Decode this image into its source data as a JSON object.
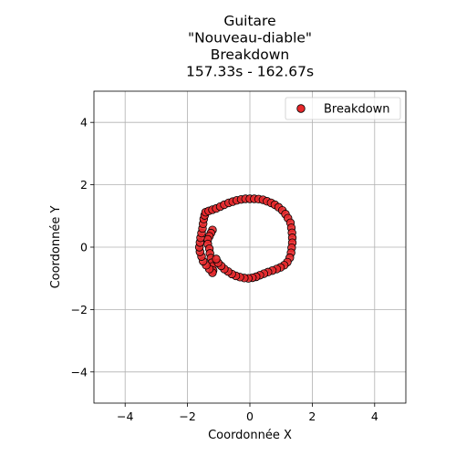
{
  "chart_data": {
    "type": "scatter",
    "title_lines": [
      "Guitare",
      "\"Nouveau-diable\"",
      "Breakdown",
      "157.33s - 162.67s"
    ],
    "xlabel": "Coordonnée X",
    "ylabel": "Coordonnée Y",
    "xlim": [
      -5,
      5
    ],
    "ylim": [
      -5,
      5
    ],
    "xticks": [
      -4,
      -2,
      0,
      2,
      4
    ],
    "yticks": [
      -4,
      -2,
      0,
      2,
      4
    ],
    "xtick_labels": [
      "−4",
      "−2",
      "0",
      "2",
      "4"
    ],
    "ytick_labels": [
      "−4",
      "−2",
      "0",
      "2",
      "4"
    ],
    "grid": true,
    "legend_position": "top-right",
    "series": [
      {
        "name": "Breakdown",
        "color": "#e8282b",
        "edgecolor": "#000000",
        "points": [
          [
            -1.2,
            0.55
          ],
          [
            -1.25,
            0.45
          ],
          [
            -1.3,
            0.35
          ],
          [
            -1.35,
            0.25
          ],
          [
            -1.35,
            0.1
          ],
          [
            -1.3,
            -0.05
          ],
          [
            -1.28,
            -0.2
          ],
          [
            -1.25,
            -0.35
          ],
          [
            -1.22,
            -0.5
          ],
          [
            -1.2,
            -0.62
          ],
          [
            -1.18,
            -0.75
          ],
          [
            -1.2,
            -0.82
          ],
          [
            -1.3,
            -0.7
          ],
          [
            -1.4,
            -0.58
          ],
          [
            -1.5,
            -0.45
          ],
          [
            -1.55,
            -0.3
          ],
          [
            -1.6,
            -0.15
          ],
          [
            -1.62,
            0.0
          ],
          [
            -1.6,
            0.15
          ],
          [
            -1.58,
            0.3
          ],
          [
            -1.55,
            0.45
          ],
          [
            -1.52,
            0.6
          ],
          [
            -1.5,
            0.75
          ],
          [
            -1.48,
            0.9
          ],
          [
            -1.45,
            1.02
          ],
          [
            -1.42,
            1.12
          ],
          [
            -1.32,
            1.16
          ],
          [
            -1.2,
            1.2
          ],
          [
            -1.08,
            1.24
          ],
          [
            -0.95,
            1.3
          ],
          [
            -0.82,
            1.36
          ],
          [
            -0.68,
            1.42
          ],
          [
            -0.55,
            1.46
          ],
          [
            -0.42,
            1.5
          ],
          [
            -0.28,
            1.53
          ],
          [
            -0.14,
            1.55
          ],
          [
            0.0,
            1.55
          ],
          [
            0.14,
            1.55
          ],
          [
            0.28,
            1.54
          ],
          [
            0.42,
            1.52
          ],
          [
            0.55,
            1.47
          ],
          [
            0.68,
            1.42
          ],
          [
            0.8,
            1.36
          ],
          [
            0.92,
            1.28
          ],
          [
            1.04,
            1.18
          ],
          [
            1.14,
            1.06
          ],
          [
            1.22,
            0.93
          ],
          [
            1.3,
            0.78
          ],
          [
            1.33,
            0.62
          ],
          [
            1.35,
            0.46
          ],
          [
            1.36,
            0.3
          ],
          [
            1.36,
            0.14
          ],
          [
            1.34,
            -0.02
          ],
          [
            1.32,
            -0.18
          ],
          [
            1.28,
            -0.34
          ],
          [
            1.2,
            -0.48
          ],
          [
            1.1,
            -0.58
          ],
          [
            0.98,
            -0.65
          ],
          [
            0.86,
            -0.7
          ],
          [
            0.72,
            -0.75
          ],
          [
            0.58,
            -0.8
          ],
          [
            0.45,
            -0.85
          ],
          [
            0.32,
            -0.9
          ],
          [
            0.2,
            -0.95
          ],
          [
            0.08,
            -0.98
          ],
          [
            -0.05,
            -1.0
          ],
          [
            -0.18,
            -0.99
          ],
          [
            -0.32,
            -0.96
          ],
          [
            -0.45,
            -0.92
          ],
          [
            -0.58,
            -0.86
          ],
          [
            -0.7,
            -0.78
          ],
          [
            -0.82,
            -0.7
          ],
          [
            -0.92,
            -0.6
          ],
          [
            -1.02,
            -0.5
          ],
          [
            -1.08,
            -0.38
          ]
        ]
      }
    ]
  }
}
